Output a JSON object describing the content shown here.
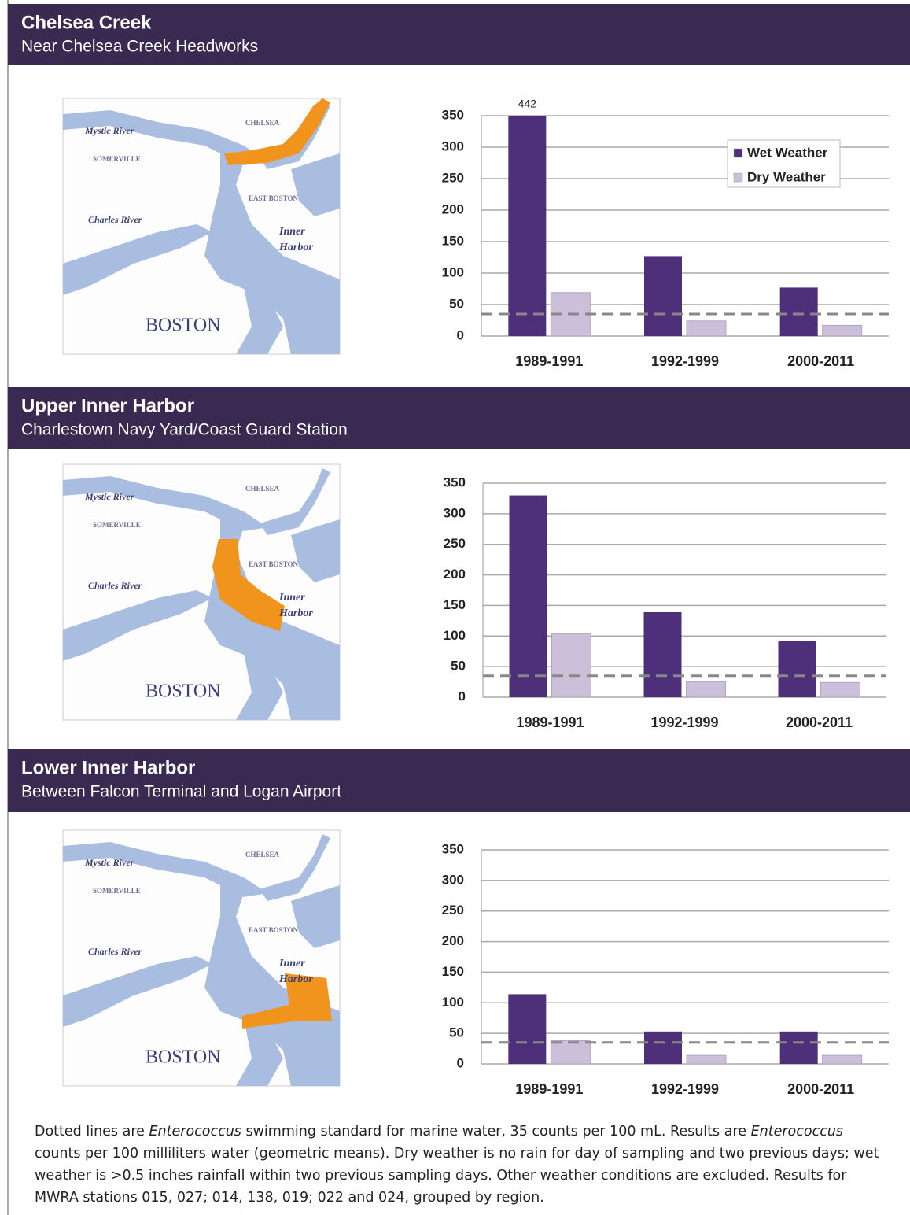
{
  "sections": [
    {
      "title": "Chelsea Creek",
      "subtitle": "Near Chelsea Creek Headworks"
    },
    {
      "title": "Upper Inner Harbor",
      "subtitle": "Charlestown Navy Yard/Coast Guard Station"
    },
    {
      "title": "Lower Inner Harbor",
      "subtitle": "Between Falcon Terminal and Logan Airport"
    }
  ],
  "map_labels": [
    "Mystic River",
    "CHELSEA",
    "SOMERVILLE",
    "EAST BOSTON",
    "Charles River",
    "Inner",
    "Harbor",
    "BOSTON"
  ],
  "chart_data": [
    {
      "type": "bar",
      "categories": [
        "1989-1991",
        "1992-1999",
        "2000-2011"
      ],
      "series": [
        {
          "name": "Wet Weather",
          "color": "#4e2f7a",
          "values": [
            442,
            127,
            77
          ],
          "value_labels": [
            "442",
            null,
            null
          ]
        },
        {
          "name": "Dry Weather",
          "color": "#cbbfda",
          "values": [
            69,
            24,
            17
          ]
        }
      ],
      "ylim": [
        0,
        350
      ],
      "yticks": [
        0,
        50,
        100,
        150,
        200,
        250,
        300,
        350
      ],
      "grid": true,
      "reference_line": 35,
      "legend": "top-right"
    },
    {
      "type": "bar",
      "categories": [
        "1989-1991",
        "1992-1999",
        "2000-2011"
      ],
      "series": [
        {
          "name": "Wet Weather",
          "color": "#4e2f7a",
          "values": [
            330,
            139,
            92
          ]
        },
        {
          "name": "Dry Weather",
          "color": "#cbbfda",
          "values": [
            104,
            25,
            24
          ]
        }
      ],
      "ylim": [
        0,
        350
      ],
      "yticks": [
        0,
        50,
        100,
        150,
        200,
        250,
        300,
        350
      ],
      "grid": true,
      "reference_line": 35
    },
    {
      "type": "bar",
      "categories": [
        "1989-1991",
        "1992-1999",
        "2000-2011"
      ],
      "series": [
        {
          "name": "Wet Weather",
          "color": "#4e2f7a",
          "values": [
            114,
            53,
            53
          ]
        },
        {
          "name": "Dry Weather",
          "color": "#cbbfda",
          "values": [
            38,
            14,
            14
          ]
        }
      ],
      "ylim": [
        0,
        350
      ],
      "yticks": [
        0,
        50,
        100,
        150,
        200,
        250,
        300,
        350
      ],
      "grid": true,
      "reference_line": 35
    }
  ],
  "footnote": [
    {
      "text": "Dotted lines are "
    },
    {
      "text": "Enterococcus",
      "italic": true
    },
    {
      "text": " swimming standard for marine water, 35 counts per 100 mL.  Results are "
    },
    {
      "text": "Enterococcus",
      "italic": true
    },
    {
      "text": " counts per 100 milliliters water (geometric means).  Dry weather is no rain for day of sampling and two previous days; wet weather is >0.5 inches rainfall within two previous sampling days.  Other weather conditions are excluded. Results for MWRA stations 015, 027; 014, 138, 019; 022 and 024, grouped by region."
    }
  ]
}
